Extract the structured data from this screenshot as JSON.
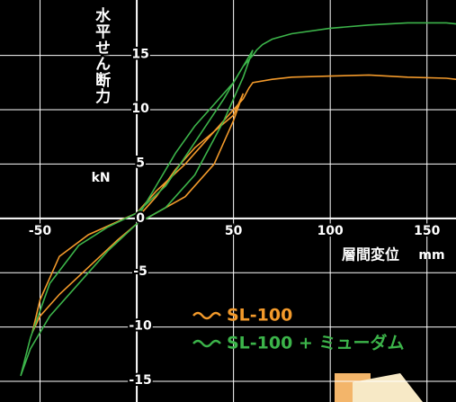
{
  "chart_data": {
    "type": "line",
    "y_label": "水平せん断力",
    "y_unit": "kN",
    "x_label": "層間変位",
    "x_unit": "mm",
    "xlim": [
      -70.7,
      165
    ],
    "ylim": [
      -16.9,
      20.1
    ],
    "xticks": [
      -50,
      50,
      100,
      150
    ],
    "yticks": [
      -15,
      -10,
      -5,
      0,
      5,
      10,
      15
    ],
    "grid": true,
    "series": [
      {
        "name": "SL-100",
        "color": "#f39a2b",
        "x": [
          0,
          10,
          20,
          30,
          40,
          50,
          55,
          50,
          40,
          25,
          10,
          0,
          -10,
          -25,
          -40,
          -50,
          -54,
          -50,
          -40,
          -25,
          -10,
          0,
          10,
          25,
          40,
          55,
          58,
          60,
          70,
          80,
          100,
          120,
          140,
          160,
          170
        ],
        "values": [
          0,
          2,
          4.5,
          6.5,
          8,
          9.5,
          11.5,
          9,
          5,
          2,
          0.5,
          -0.5,
          -2,
          -4.5,
          -7,
          -9,
          -10.5,
          -7.5,
          -3.5,
          -1.5,
          -0.3,
          0.5,
          2.5,
          5,
          8,
          11,
          12,
          12.5,
          12.8,
          13,
          13.1,
          13.2,
          13,
          12.9,
          12.7
        ]
      },
      {
        "name": "SL-100 + ミューダム",
        "color": "#3cb44a",
        "x": [
          0,
          10,
          20,
          30,
          40,
          50,
          55,
          60,
          55,
          45,
          30,
          15,
          0,
          -15,
          -30,
          -45,
          -55,
          -60,
          -55,
          -45,
          -30,
          -15,
          0,
          15,
          30,
          45,
          55,
          60,
          62,
          65,
          70,
          80,
          100,
          120,
          140,
          160,
          170
        ],
        "values": [
          0,
          3,
          6,
          8.5,
          10.5,
          12.5,
          14,
          15.5,
          13,
          9,
          4,
          1,
          -0.5,
          -3,
          -6,
          -9,
          -12,
          -14.5,
          -11,
          -6,
          -2.5,
          -0.8,
          0.5,
          3,
          7,
          11,
          14,
          15,
          15.5,
          16,
          16.5,
          17,
          17.5,
          17.8,
          18,
          18,
          17.8
        ]
      }
    ]
  }
}
